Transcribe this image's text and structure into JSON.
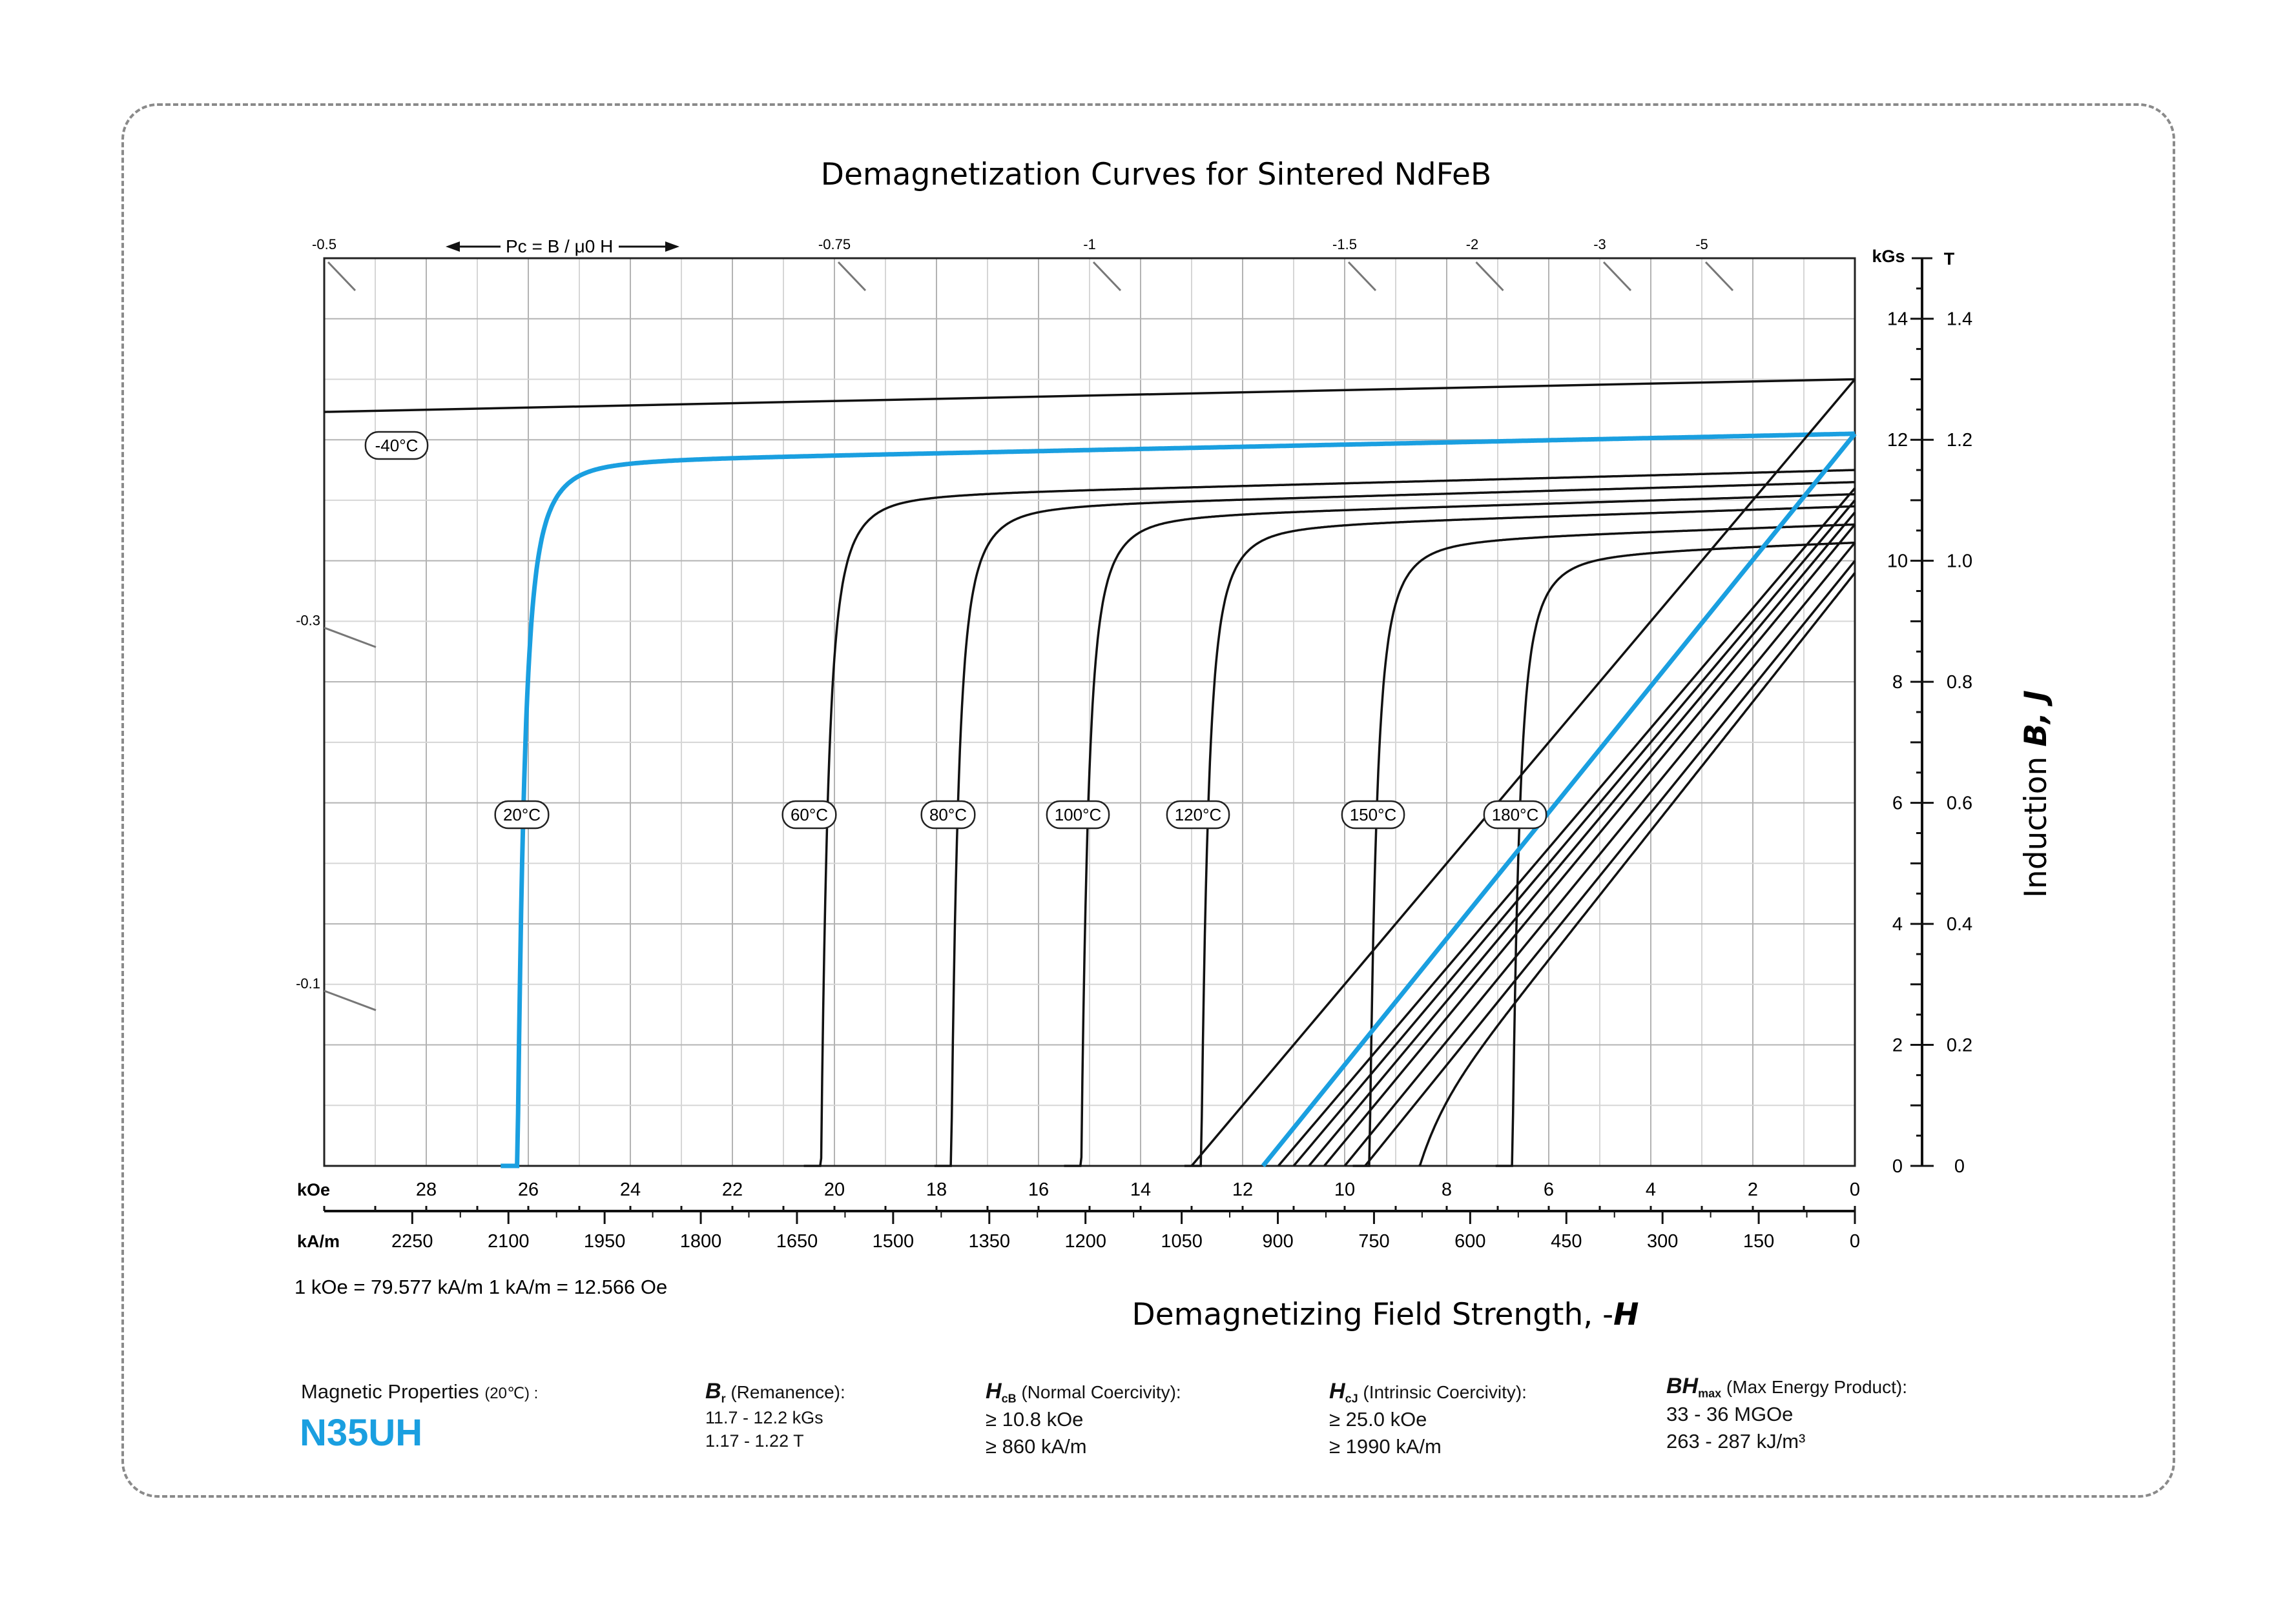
{
  "chart_data": {
    "type": "line",
    "title": "Demagnetization Curves for Sintered NdFeB",
    "xlabel_prefix": "Demagnetizing Field Strength, -",
    "xlabel_var": "H",
    "ylabel_prefix": "Induction ",
    "ylabel_vars": "B,  J",
    "x_unit_koe": "kOe",
    "x_unit_kam": "kA/m",
    "y_unit_kgs": "kGs",
    "y_unit_t": "T",
    "xlim_koe": [
      30,
      0
    ],
    "ylim_kgs": [
      0,
      15
    ],
    "grid": true,
    "koe_ticks": [
      "28",
      "26",
      "24",
      "22",
      "20",
      "18",
      "16",
      "14",
      "12",
      "10",
      "8",
      "6",
      "4",
      "2",
      "0"
    ],
    "koe_tick_values": [
      28,
      26,
      24,
      22,
      20,
      18,
      16,
      14,
      12,
      10,
      8,
      6,
      4,
      2,
      0
    ],
    "kam_ticks": [
      "2250",
      "2100",
      "1950",
      "1800",
      "1650",
      "1500",
      "1350",
      "1200",
      "1050",
      "900",
      "750",
      "600",
      "450",
      "300",
      "150",
      "0"
    ],
    "kam_tick_values": [
      2250,
      2100,
      1950,
      1800,
      1650,
      1500,
      1350,
      1200,
      1050,
      900,
      750,
      600,
      450,
      300,
      150,
      0
    ],
    "kgs_ticks": [
      "14",
      "12",
      "10",
      "8",
      "6",
      "4",
      "2",
      "0"
    ],
    "kgs_tick_values": [
      14,
      12,
      10,
      8,
      6,
      4,
      2,
      0
    ],
    "t_ticks": [
      "1.4",
      "1.2",
      "1.0",
      "0.8",
      "0.6",
      "0.4",
      "0.2",
      "0"
    ],
    "t_tick_values": [
      1.4,
      1.2,
      1.0,
      0.8,
      0.6,
      0.4,
      0.2,
      0
    ],
    "conversion_note": "1 kOe = 79.577 kA/m   1 kA/m = 12.566 Oe",
    "permeance_label": "Pc = B / μ0 H",
    "permeance_top": [
      {
        "label": "-0.5",
        "h": 30.0
      },
      {
        "label": "-0.75",
        "h": 20.0
      },
      {
        "label": "-1",
        "h": 15.0
      },
      {
        "label": "-1.5",
        "h": 10.0
      },
      {
        "label": "-2",
        "h": 7.5
      },
      {
        "label": "-3",
        "h": 5.0
      },
      {
        "label": "-5",
        "h": 3.0
      }
    ],
    "permeance_left": [
      {
        "label": "-0.3",
        "b": 9.0
      },
      {
        "label": "-0.1",
        "b": 3.0
      }
    ],
    "series": [
      {
        "name": "-40°C",
        "kind": "J",
        "br": 13.0,
        "hcj": 32.0,
        "highlight": false
      },
      {
        "name": "20°C",
        "kind": "J",
        "br": 12.1,
        "hcj": 26.25,
        "highlight": true
      },
      {
        "name": "60°C",
        "kind": "J",
        "br": 11.5,
        "hcj": 20.3,
        "highlight": false
      },
      {
        "name": "80°C",
        "kind": "J",
        "br": 11.3,
        "hcj": 17.75,
        "highlight": false
      },
      {
        "name": "100°C",
        "kind": "J",
        "br": 11.1,
        "hcj": 15.2,
        "highlight": false
      },
      {
        "name": "120°C",
        "kind": "J",
        "br": 10.9,
        "hcj": 12.85,
        "highlight": false
      },
      {
        "name": "150°C",
        "kind": "J",
        "br": 10.6,
        "hcj": 9.55,
        "highlight": false
      },
      {
        "name": "180°C",
        "kind": "J",
        "br": 10.3,
        "hcj": 6.75,
        "highlight": false
      },
      {
        "kind": "B",
        "br": 13.0,
        "hcb": 13.0,
        "highlight": false
      },
      {
        "kind": "B",
        "br": 12.1,
        "hcb": 11.6,
        "highlight": true
      },
      {
        "kind": "B",
        "br": 11.2,
        "hcb": 11.3,
        "highlight": false
      },
      {
        "kind": "B",
        "br": 11.0,
        "hcb": 11.0,
        "highlight": false
      },
      {
        "kind": "B",
        "br": 10.8,
        "hcb": 10.7,
        "highlight": false
      },
      {
        "kind": "B",
        "br": 10.6,
        "hcb": 10.4,
        "highlight": false
      },
      {
        "kind": "B",
        "br": 10.3,
        "hcb": 10.0,
        "highlight": false
      },
      {
        "kind": "B",
        "br": 10.0,
        "hcb": 9.6,
        "highlight": false
      },
      {
        "kind": "B",
        "br": 9.8,
        "hcb": 9.2,
        "knee": 6.55,
        "highlight": false
      }
    ]
  },
  "properties": {
    "label": "Magnetic Properties",
    "label_temp": "(20℃) :",
    "grade": "N35UH",
    "br": {
      "symbol": "B",
      "sub": "r",
      "desc": " (Remanence):",
      "v1": "11.7 - 12.2 kGs",
      "v2": "1.17 - 1.22 T"
    },
    "hcb": {
      "symbol": "H",
      "sub": "cB",
      "desc": " (Normal Coercivity):",
      "v1": "≥ 10.8 kOe",
      "v2": "≥ 860 kA/m"
    },
    "hcj": {
      "symbol": "H",
      "sub": "cJ",
      "desc": " (Intrinsic Coercivity):",
      "v1": "≥ 25.0 kOe",
      "v2": "≥ 1990 kA/m"
    },
    "bh": {
      "symbol": "BH",
      "sub": "max",
      "desc": " (Max Energy Product):",
      "v1": "33 - 36 MGOe",
      "v2": "263 - 287 kJ/m³"
    }
  }
}
